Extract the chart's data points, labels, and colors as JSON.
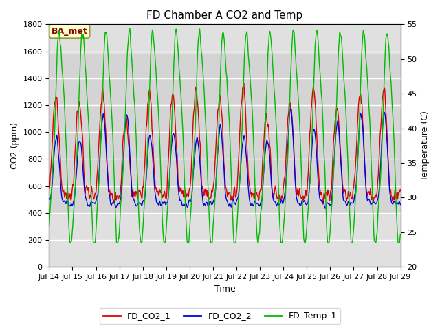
{
  "title": "FD Chamber A CO2 and Temp",
  "xlabel": "Time",
  "ylabel_left": "CO2 (ppm)",
  "ylabel_right": "Temperature (C)",
  "ylim_left": [
    0,
    1800
  ],
  "ylim_right": [
    20,
    55
  ],
  "yticks_left": [
    0,
    200,
    400,
    600,
    800,
    1000,
    1200,
    1400,
    1600,
    1800
  ],
  "yticks_right": [
    20,
    25,
    30,
    35,
    40,
    45,
    50,
    55
  ],
  "x_tick_days": [
    14,
    15,
    16,
    17,
    18,
    19,
    20,
    21,
    22,
    23,
    24,
    25,
    26,
    27,
    28,
    29
  ],
  "x_tick_labels": [
    "Jul 14",
    "Jul 15",
    "Jul 16",
    "Jul 17",
    "Jul 18",
    "Jul 19",
    "Jul 20",
    "Jul 21",
    "Jul 22",
    "Jul 23",
    "Jul 24",
    "Jul 25",
    "Jul 26",
    "Jul 27",
    "Jul 28",
    "Jul 29"
  ],
  "color_co2_1": "#dd0000",
  "color_co2_2": "#0000dd",
  "color_temp": "#00bb00",
  "legend_labels": [
    "FD_CO2_1",
    "FD_CO2_2",
    "FD_Temp_1"
  ],
  "annotation_text": "BA_met",
  "title_fontsize": 11,
  "axis_fontsize": 9,
  "tick_fontsize": 8,
  "legend_fontsize": 9,
  "line_width": 1.0,
  "grid_color": "#bbbbbb",
  "plot_bg": "#e0e0e0",
  "band_color": "#d0d0d0"
}
